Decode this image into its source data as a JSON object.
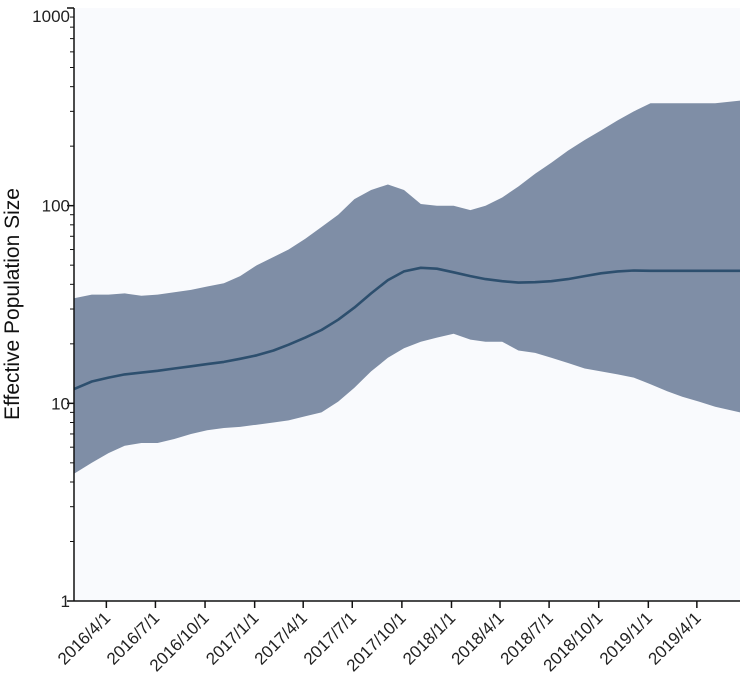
{
  "chart_data": {
    "type": "area",
    "title": "",
    "xlabel": "",
    "ylabel": "Effective Population Size",
    "yscale": "log",
    "ylim": [
      1,
      1000
    ],
    "xlim": [
      "2016-02-01",
      "2019-06-20"
    ],
    "grid": false,
    "y_ticks": [
      {
        "value": 1,
        "label": "1"
      },
      {
        "value": 10,
        "label": "10"
      },
      {
        "value": 100,
        "label": "100"
      },
      {
        "value": 1000,
        "label": "1000"
      }
    ],
    "x_ticks": [
      {
        "date": "2016-04-01",
        "label": "2016/4/1"
      },
      {
        "date": "2016-07-01",
        "label": "2016/7/1"
      },
      {
        "date": "2016-10-01",
        "label": "2016/10/1"
      },
      {
        "date": "2017-01-01",
        "label": "2017/1/1"
      },
      {
        "date": "2017-04-01",
        "label": "2017/4/1"
      },
      {
        "date": "2017-07-01",
        "label": "2017/7/1"
      },
      {
        "date": "2017-10-01",
        "label": "2017/10/1"
      },
      {
        "date": "2018-01-01",
        "label": "2018/1/1"
      },
      {
        "date": "2018-04-01",
        "label": "2018/4/1"
      },
      {
        "date": "2018-07-01",
        "label": "2018/7/1"
      },
      {
        "date": "2018-10-01",
        "label": "2018/10/1"
      },
      {
        "date": "2019-01-01",
        "label": "2019/1/1"
      },
      {
        "date": "2019-04-01",
        "label": "2019/4/1"
      }
    ],
    "colors": {
      "band": "#7f8ea6",
      "line": "#2d4f6e",
      "background": "#f9fafd",
      "axis": "#111111"
    },
    "x": [
      "2016-02-01",
      "2016-03-05",
      "2016-04-05",
      "2016-05-05",
      "2016-06-05",
      "2016-07-05",
      "2016-08-05",
      "2016-09-05",
      "2016-10-05",
      "2016-11-05",
      "2016-12-05",
      "2017-01-05",
      "2017-02-05",
      "2017-03-05",
      "2017-04-05",
      "2017-05-05",
      "2017-06-05",
      "2017-07-05",
      "2017-08-05",
      "2017-09-05",
      "2017-10-05",
      "2017-11-05",
      "2017-12-05",
      "2018-01-05",
      "2018-02-05",
      "2018-03-05",
      "2018-04-05",
      "2018-05-05",
      "2018-06-05",
      "2018-07-05",
      "2018-08-05",
      "2018-09-05",
      "2018-10-05",
      "2018-11-05",
      "2018-12-05",
      "2019-01-05",
      "2019-02-05",
      "2019-03-05",
      "2019-04-05",
      "2019-05-05",
      "2019-06-20"
    ],
    "series": [
      {
        "role": "median",
        "values": [
          11.8,
          12.9,
          13.5,
          14.0,
          14.3,
          14.6,
          15.0,
          15.4,
          15.8,
          16.2,
          16.8,
          17.5,
          18.5,
          19.8,
          21.5,
          23.5,
          26.5,
          30.5,
          36.0,
          42.0,
          46.5,
          48.5,
          48.0,
          46.0,
          44.0,
          42.5,
          41.5,
          40.8,
          41.0,
          41.5,
          42.5,
          44.0,
          45.5,
          46.5,
          47.0,
          46.8,
          46.8,
          46.8,
          46.8,
          46.8,
          46.8
        ]
      },
      {
        "role": "lower",
        "values": [
          4.4,
          5.0,
          5.6,
          6.1,
          6.3,
          6.3,
          6.6,
          7.0,
          7.3,
          7.5,
          7.6,
          7.8,
          8.0,
          8.2,
          8.6,
          9.0,
          10.2,
          12.0,
          14.5,
          17.0,
          19.0,
          20.5,
          21.5,
          22.5,
          21.0,
          20.5,
          20.5,
          18.5,
          18.0,
          17.0,
          16.0,
          15.0,
          14.5,
          14.0,
          13.5,
          12.5,
          11.5,
          10.8,
          10.2,
          9.6,
          9.0
        ]
      },
      {
        "role": "upper",
        "values": [
          34,
          35.5,
          35.5,
          36,
          35,
          35.5,
          36.5,
          37.5,
          39,
          40.5,
          44,
          50,
          55,
          60,
          68,
          78,
          90,
          108,
          120,
          128,
          120,
          102,
          100,
          100,
          95,
          100,
          110,
          125,
          145,
          165,
          190,
          215,
          240,
          270,
          300,
          330,
          330,
          330,
          330,
          330,
          340
        ]
      }
    ]
  }
}
